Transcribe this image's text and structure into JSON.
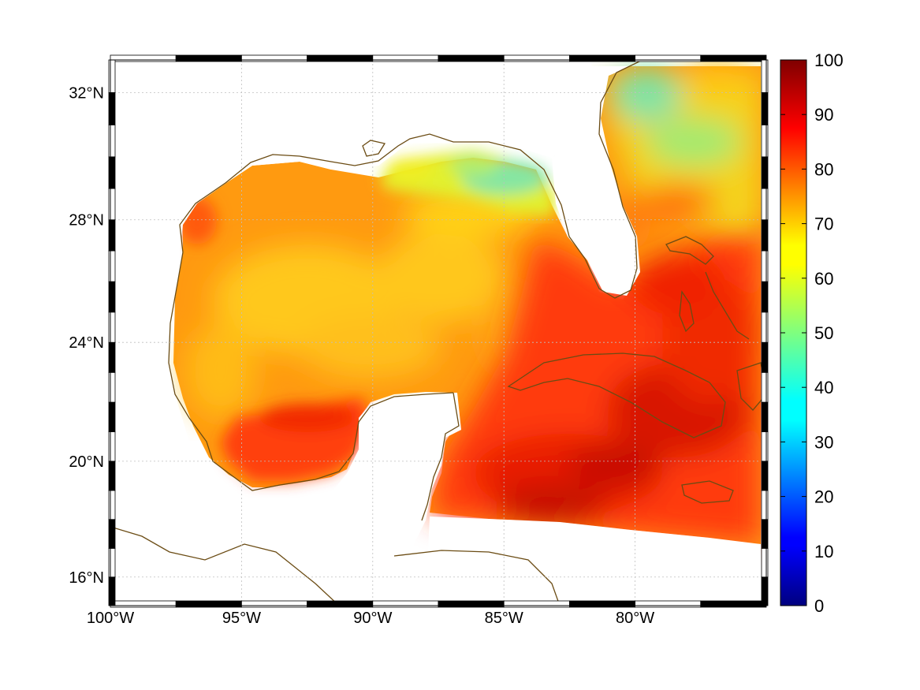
{
  "map": {
    "projection": "mercator",
    "lon_range": [
      -100,
      -75
    ],
    "lat_range": [
      15,
      33
    ],
    "lon_ticks": [
      {
        "value": -100,
        "label": "100°W"
      },
      {
        "value": -95,
        "label": "95°W"
      },
      {
        "value": -90,
        "label": "90°W"
      },
      {
        "value": -85,
        "label": "85°W"
      },
      {
        "value": -80,
        "label": "80°W"
      }
    ],
    "lat_ticks": [
      {
        "value": 32,
        "label": "32°N"
      },
      {
        "value": 28,
        "label": "28°N"
      },
      {
        "value": 24,
        "label": "24°N"
      },
      {
        "value": 20,
        "label": "20°N"
      },
      {
        "value": 16,
        "label": "16°N"
      }
    ],
    "grid": true,
    "coastline_color": "#6b4c14",
    "land_color": "#ffffff"
  },
  "colorbar": {
    "colormap": "jet",
    "range": [
      0,
      100
    ],
    "ticks": [
      "0",
      "10",
      "20",
      "30",
      "40",
      "50",
      "60",
      "70",
      "80",
      "90",
      "100"
    ],
    "position": "right"
  }
}
